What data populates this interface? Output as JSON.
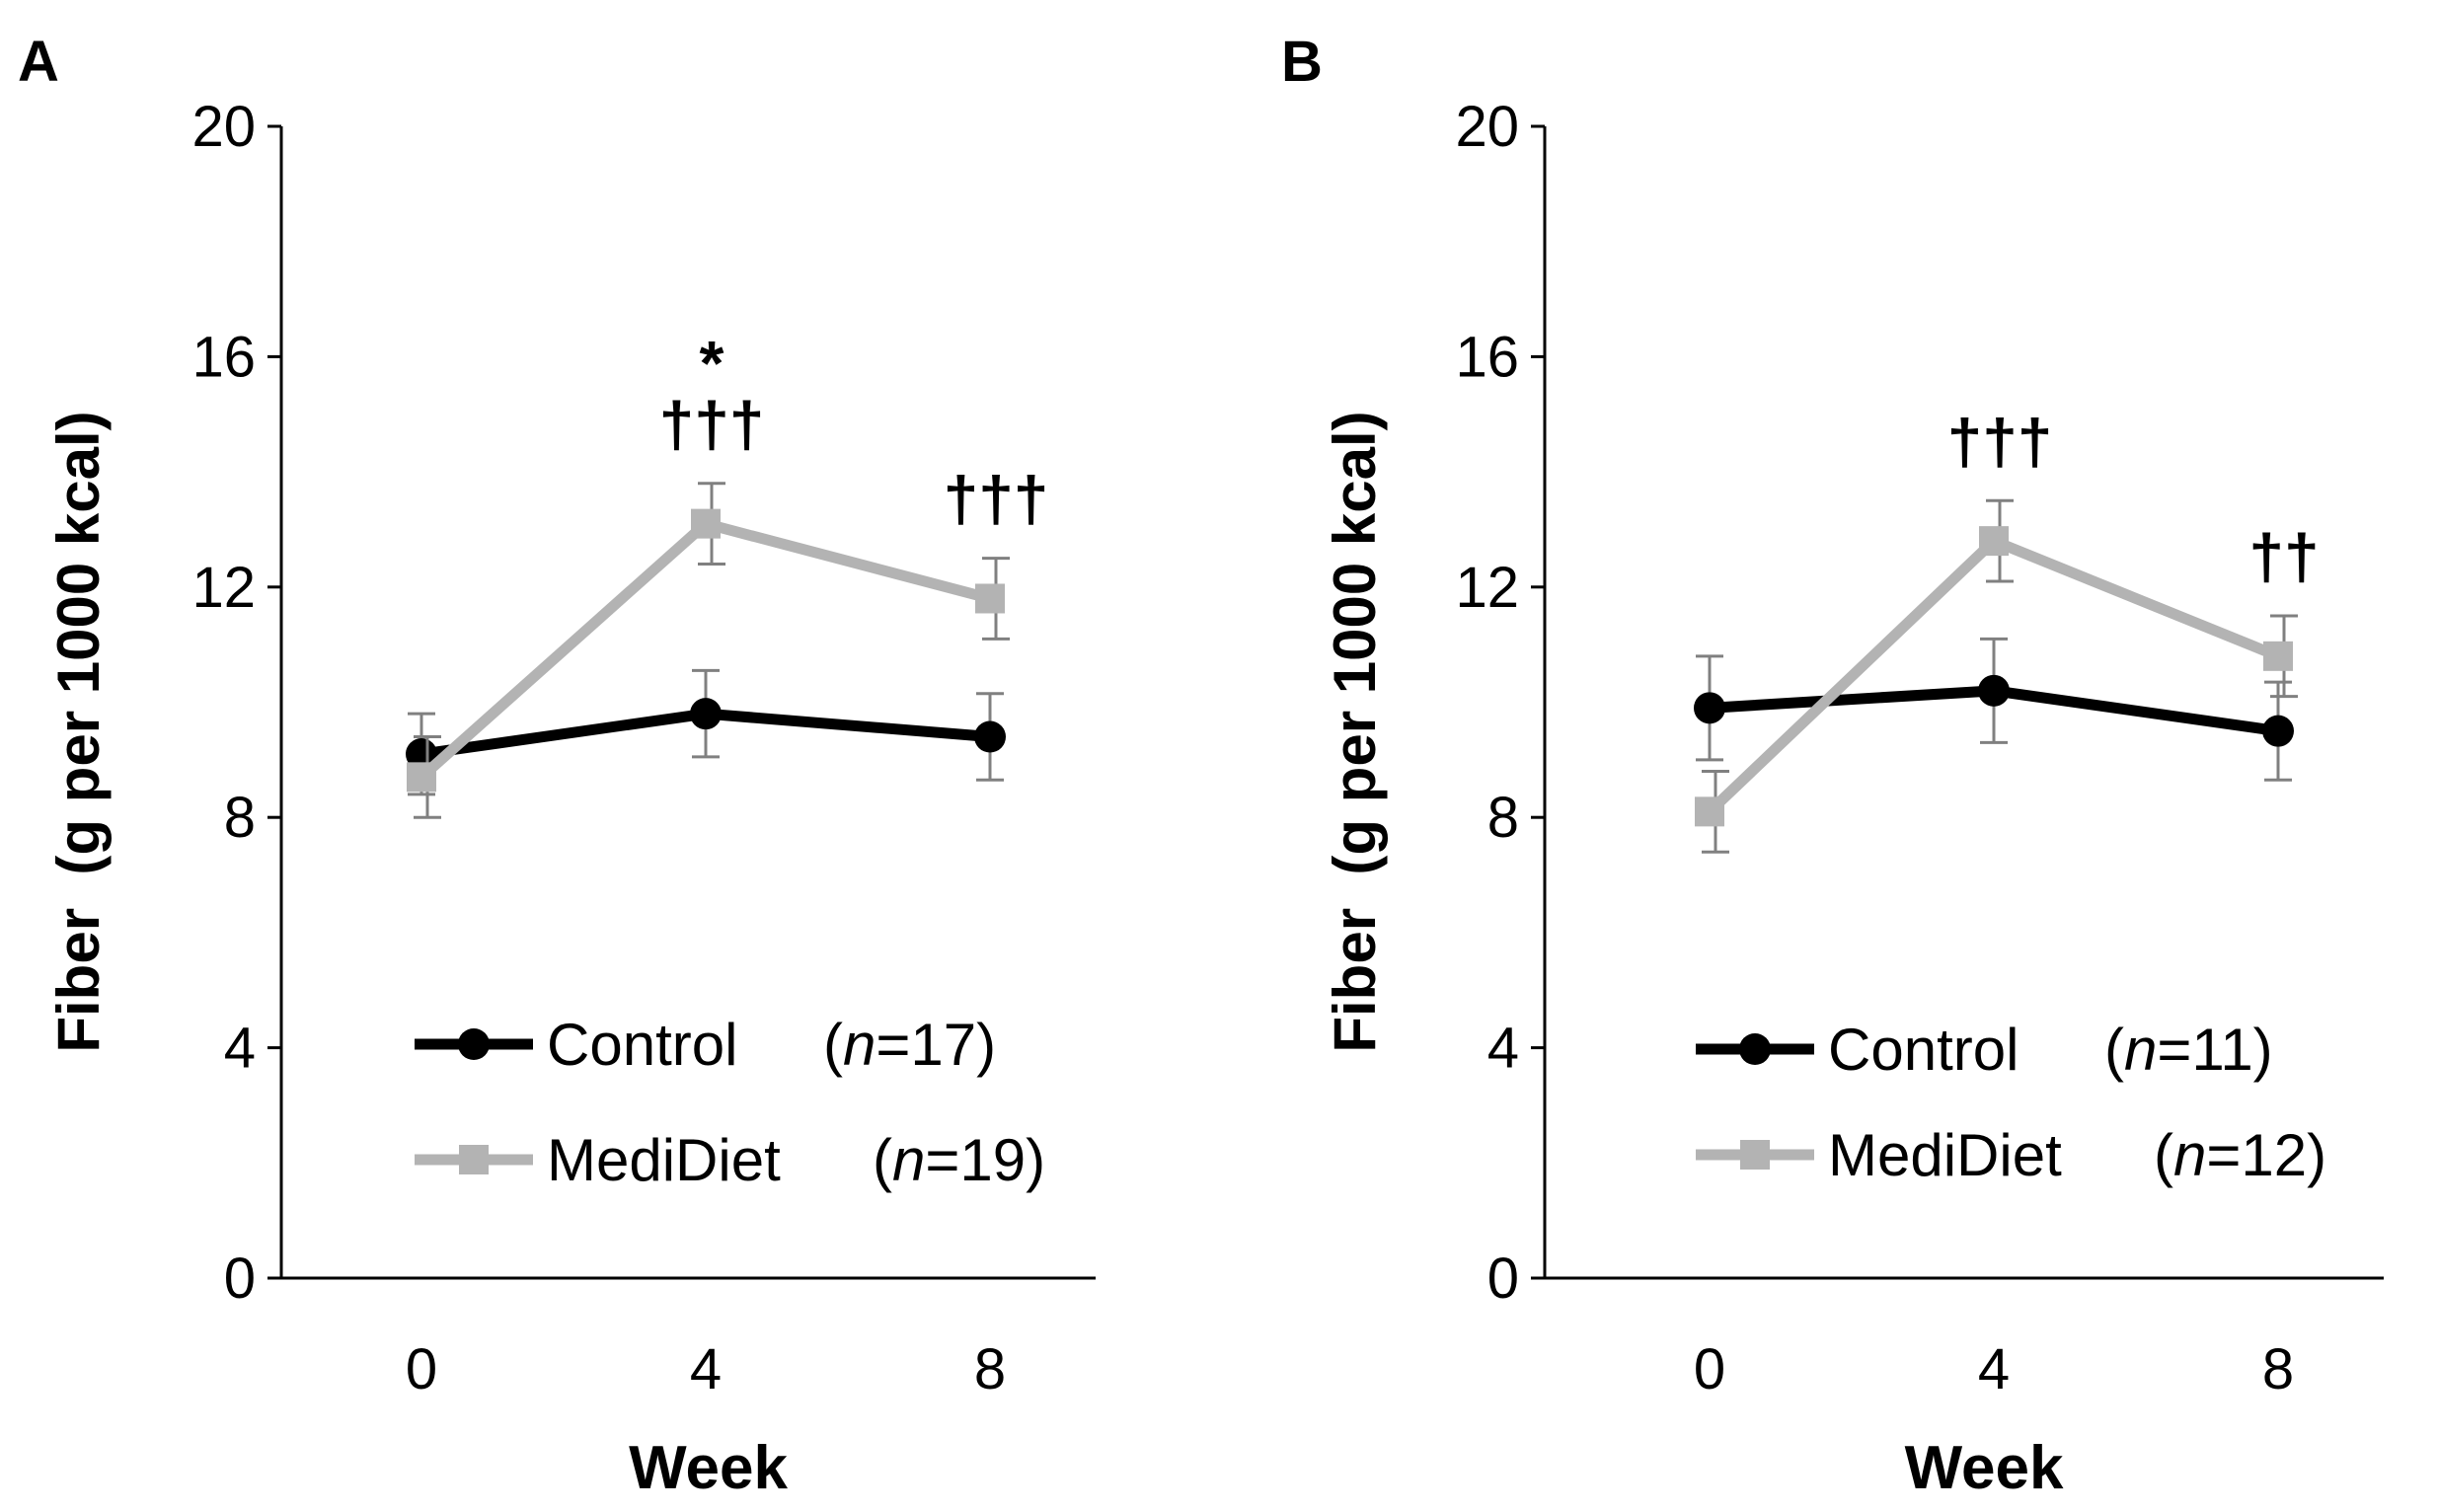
{
  "chart_data": [
    {
      "panel": "A",
      "type": "line",
      "xlabel": "Week",
      "ylabel": "Fiber  (g per 1000 kcal)",
      "ylim": [
        0,
        20
      ],
      "yticks": [
        "0",
        "4",
        "8",
        "12",
        "16",
        "20"
      ],
      "categories": [
        "0",
        "4",
        "8"
      ],
      "series": [
        {
          "name": "Control",
          "n_label": "(n=17)",
          "n_prefix": "(",
          "n_italic": "n",
          "n_suffix": "=17)",
          "color": "#000000",
          "marker": "circle",
          "values": [
            9.1,
            9.8,
            9.4
          ],
          "errors": [
            0.7,
            0.75,
            0.75
          ]
        },
        {
          "name": "MediDiet",
          "n_label": "(n=19)",
          "n_prefix": "(",
          "n_italic": "n",
          "n_suffix": "=19)",
          "color": "#b3b3b3",
          "marker": "square",
          "values": [
            8.7,
            13.1,
            11.8
          ],
          "errors": [
            0.7,
            0.7,
            0.7
          ]
        }
      ],
      "annotations": [
        {
          "category": "4",
          "lines": [
            "*",
            "†††"
          ]
        },
        {
          "category": "8",
          "lines": [
            "†††"
          ]
        }
      ]
    },
    {
      "panel": "B",
      "type": "line",
      "xlabel": "Week",
      "ylabel": "Fiber  (g per 1000 kcal)",
      "ylim": [
        0,
        20
      ],
      "yticks": [
        "0",
        "4",
        "8",
        "12",
        "16",
        "20"
      ],
      "categories": [
        "0",
        "4",
        "8"
      ],
      "series": [
        {
          "name": "Control",
          "n_label": "(n=11)",
          "n_prefix": "(",
          "n_italic": "n",
          "n_suffix": "=11)",
          "color": "#000000",
          "marker": "circle",
          "values": [
            9.9,
            10.2,
            9.5
          ],
          "errors": [
            0.9,
            0.9,
            0.85
          ]
        },
        {
          "name": "MediDiet",
          "n_label": "(n=12)",
          "n_prefix": "(",
          "n_italic": "n",
          "n_suffix": "=12)",
          "color": "#b3b3b3",
          "marker": "square",
          "values": [
            8.1,
            12.8,
            10.8
          ],
          "errors": [
            0.7,
            0.7,
            0.7
          ]
        }
      ],
      "annotations": [
        {
          "category": "4",
          "lines": [
            "†††"
          ]
        },
        {
          "category": "8",
          "lines": [
            "††"
          ]
        }
      ]
    }
  ]
}
